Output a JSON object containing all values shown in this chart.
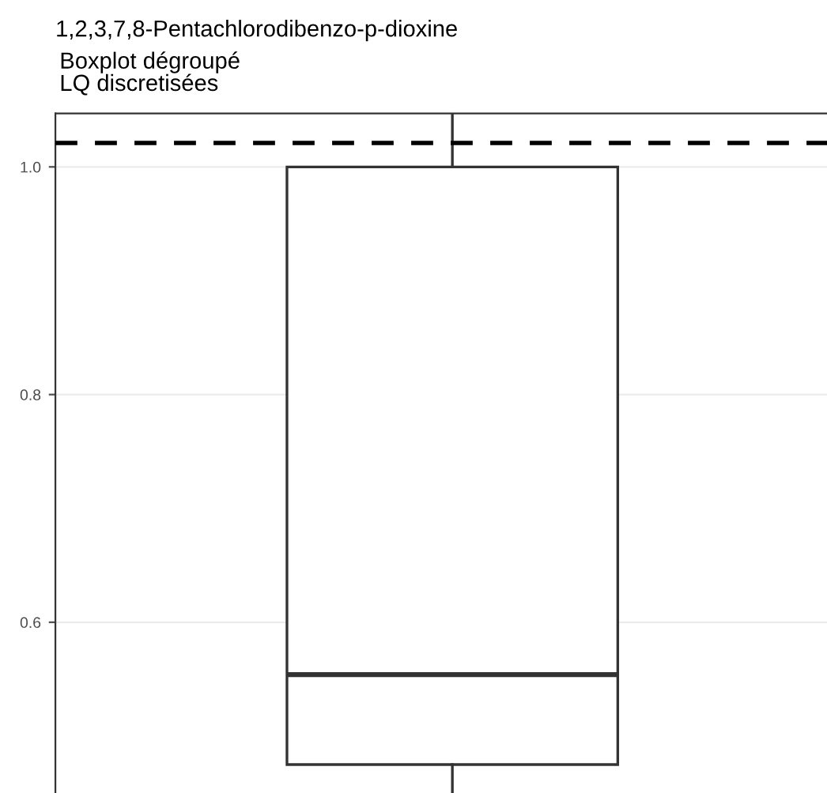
{
  "chart_data": {
    "type": "box",
    "title": "1,2,3,7,8-Pentachlorodibenzo-p-dioxine",
    "subtitle": "Boxplot dégroupé\nLQ discretisées",
    "categories": [
      null
    ],
    "boxes": [
      {
        "low": 0.45,
        "q1": 0.475,
        "median": 0.554,
        "q3": 1.0,
        "high": 1.047
      }
    ],
    "color": "#333333",
    "ylim": [
      0.45,
      1.047
    ],
    "yticks": [
      0.6,
      0.8,
      {
        "value": 1,
        "label": "1.0"
      }
    ],
    "ref_lines": [
      {
        "axis": "y",
        "value": 1.021,
        "color": "#000000",
        "line_style": "dashed"
      }
    ],
    "grid": "y",
    "tick_labels": "y"
  }
}
